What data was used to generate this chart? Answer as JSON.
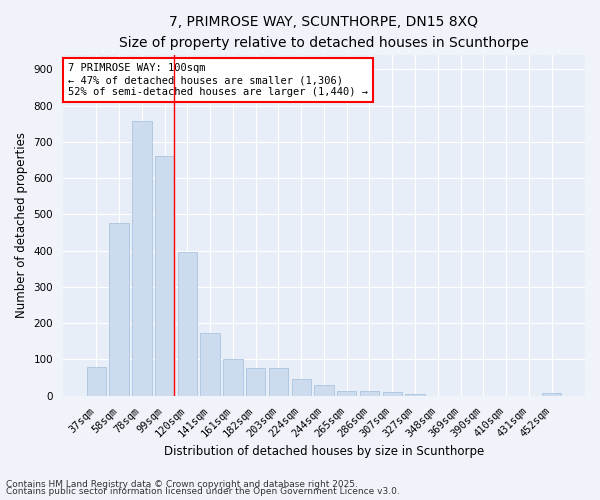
{
  "title_line1": "7, PRIMROSE WAY, SCUNTHORPE, DN15 8XQ",
  "title_line2": "Size of property relative to detached houses in Scunthorpe",
  "xlabel": "Distribution of detached houses by size in Scunthorpe",
  "ylabel": "Number of detached properties",
  "bar_color": "#ccdcee",
  "bar_edge_color": "#aac4e0",
  "background_color": "#e8eef8",
  "grid_color": "#ffffff",
  "categories": [
    "37sqm",
    "58sqm",
    "78sqm",
    "99sqm",
    "120sqm",
    "141sqm",
    "161sqm",
    "182sqm",
    "203sqm",
    "224sqm",
    "244sqm",
    "265sqm",
    "286sqm",
    "307sqm",
    "327sqm",
    "348sqm",
    "369sqm",
    "390sqm",
    "410sqm",
    "431sqm",
    "452sqm"
  ],
  "values": [
    78,
    476,
    757,
    660,
    395,
    174,
    101,
    75,
    75,
    45,
    30,
    13,
    13,
    11,
    5,
    0,
    0,
    0,
    0,
    0,
    7
  ],
  "ylim": [
    0,
    940
  ],
  "yticks": [
    0,
    100,
    200,
    300,
    400,
    500,
    600,
    700,
    800,
    900
  ],
  "red_line_x": 3.425,
  "annotation_text": "7 PRIMROSE WAY: 100sqm\n← 47% of detached houses are smaller (1,306)\n52% of semi-detached houses are larger (1,440) →",
  "footnote_line1": "Contains HM Land Registry data © Crown copyright and database right 2025.",
  "footnote_line2": "Contains public sector information licensed under the Open Government Licence v3.0.",
  "title_fontsize": 10,
  "subtitle_fontsize": 9,
  "axis_label_fontsize": 8.5,
  "tick_fontsize": 7.5,
  "annotation_fontsize": 7.5,
  "footnote_fontsize": 6.5
}
